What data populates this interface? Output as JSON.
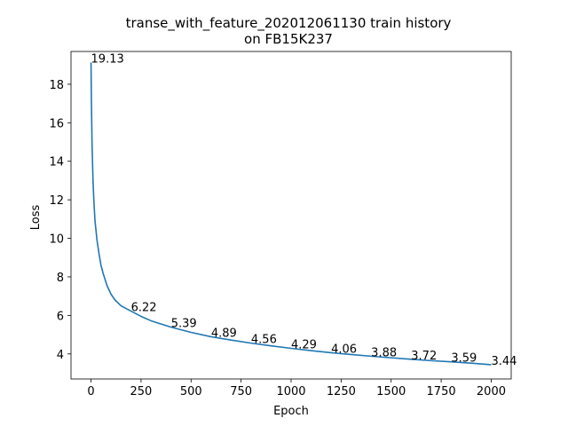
{
  "chart_data": {
    "type": "line",
    "title_line1": "transe_with_feature_202012061130 train history",
    "title_line2": "on FB15K237",
    "xlabel": "Epoch",
    "ylabel": "Loss",
    "xlim": [
      -100,
      2100
    ],
    "ylim": [
      2.7,
      19.7
    ],
    "grid": false,
    "x_ticks": [
      {
        "value": 0,
        "label": "0"
      },
      {
        "value": 250,
        "label": "250"
      },
      {
        "value": 500,
        "label": "500"
      },
      {
        "value": 750,
        "label": "750"
      },
      {
        "value": 1000,
        "label": "1000"
      },
      {
        "value": 1250,
        "label": "1250"
      },
      {
        "value": 1500,
        "label": "1500"
      },
      {
        "value": 1750,
        "label": "1750"
      },
      {
        "value": 2000,
        "label": "2000"
      }
    ],
    "y_ticks": [
      {
        "value": 4,
        "label": "4"
      },
      {
        "value": 6,
        "label": "6"
      },
      {
        "value": 8,
        "label": "8"
      },
      {
        "value": 10,
        "label": "10"
      },
      {
        "value": 12,
        "label": "12"
      },
      {
        "value": 14,
        "label": "14"
      },
      {
        "value": 16,
        "label": "16"
      },
      {
        "value": 18,
        "label": "18"
      }
    ],
    "series": [
      {
        "color": "#1f77b4",
        "x": [
          0,
          2,
          5,
          10,
          15,
          20,
          30,
          40,
          50,
          60,
          80,
          100,
          120,
          150,
          200,
          250,
          300,
          400,
          500,
          600,
          700,
          800,
          900,
          1000,
          1100,
          1200,
          1300,
          1400,
          1500,
          1600,
          1700,
          1800,
          1900,
          2000
        ],
        "y": [
          19.13,
          17.2,
          15.0,
          13.0,
          11.8,
          10.9,
          9.9,
          9.2,
          8.6,
          8.2,
          7.55,
          7.1,
          6.8,
          6.5,
          6.22,
          5.95,
          5.72,
          5.39,
          5.12,
          4.89,
          4.72,
          4.56,
          4.42,
          4.29,
          4.17,
          4.06,
          3.97,
          3.88,
          3.8,
          3.72,
          3.65,
          3.59,
          3.52,
          3.44
        ]
      }
    ],
    "annotations": [
      {
        "x": 0,
        "y": 19.13,
        "text": "19.13"
      },
      {
        "x": 200,
        "y": 6.22,
        "text": "6.22"
      },
      {
        "x": 400,
        "y": 5.39,
        "text": "5.39"
      },
      {
        "x": 600,
        "y": 4.89,
        "text": "4.89"
      },
      {
        "x": 800,
        "y": 4.56,
        "text": "4.56"
      },
      {
        "x": 1000,
        "y": 4.29,
        "text": "4.29"
      },
      {
        "x": 1200,
        "y": 4.06,
        "text": "4.06"
      },
      {
        "x": 1400,
        "y": 3.88,
        "text": "3.88"
      },
      {
        "x": 1600,
        "y": 3.72,
        "text": "3.72"
      },
      {
        "x": 1800,
        "y": 3.59,
        "text": "3.59"
      },
      {
        "x": 2000,
        "y": 3.44,
        "text": "3.44"
      }
    ]
  }
}
